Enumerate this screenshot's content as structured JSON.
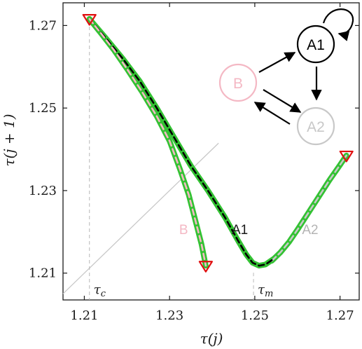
{
  "chart_data": {
    "type": "line",
    "xlabel": "τ(j)",
    "ylabel": "τ(j + 1)",
    "xlim": [
      1.205,
      1.2745
    ],
    "ylim": [
      1.2035,
      1.2755
    ],
    "xticks": [
      "1.21",
      "1.23",
      "1.25",
      "1.27"
    ],
    "yticks": [
      "1.21",
      "1.23",
      "1.25",
      "1.27"
    ],
    "grid": false,
    "identity_line": {
      "x": [
        1.205,
        1.2415
      ],
      "y": [
        1.205,
        1.2415
      ],
      "color": "#c8c8c8"
    },
    "series": [
      {
        "name": "B",
        "color": "#f4b8c4",
        "x": [
          1.2112,
          1.214,
          1.217,
          1.22,
          1.2235,
          1.227,
          1.23,
          1.2325,
          1.2345,
          1.236,
          1.2375,
          1.2385
        ],
        "y": [
          1.2716,
          1.268,
          1.264,
          1.2595,
          1.254,
          1.248,
          1.242,
          1.235,
          1.229,
          1.223,
          1.217,
          1.2118
        ]
      },
      {
        "name": "A1",
        "color": "#000000",
        "x": [
          1.2112,
          1.215,
          1.219,
          1.223,
          1.227,
          1.231,
          1.235,
          1.239,
          1.243,
          1.246,
          1.248,
          1.2495,
          1.251,
          1.2525,
          1.2545
        ],
        "y": [
          1.2716,
          1.267,
          1.262,
          1.2565,
          1.25,
          1.243,
          1.236,
          1.23,
          1.2235,
          1.218,
          1.2145,
          1.2125,
          1.2118,
          1.2121,
          1.2135
        ]
      },
      {
        "name": "A2",
        "color": "#c8c8c8",
        "x": [
          1.254,
          1.256,
          1.258,
          1.26,
          1.2625,
          1.265,
          1.2675,
          1.27,
          1.2715
        ],
        "y": [
          1.213,
          1.215,
          1.2175,
          1.2205,
          1.2245,
          1.2285,
          1.2325,
          1.2362,
          1.2385
        ]
      }
    ],
    "envelope_color": "#33c233",
    "markers": [
      {
        "x": 1.2112,
        "y": 1.2716
      },
      {
        "x": 1.2385,
        "y": 1.2118
      },
      {
        "x": 1.2715,
        "y": 1.2385
      }
    ],
    "marker_color": "#e01010",
    "vertical_refs": [
      {
        "x": 1.2112,
        "label": "τ",
        "sub": "c"
      },
      {
        "x": 1.2497,
        "label": "τ",
        "sub": "m"
      }
    ],
    "branch_labels": [
      {
        "text": "B",
        "x": 1.2333,
        "y": 1.2195,
        "color": "#f4b8c4"
      },
      {
        "text": "A1",
        "x": 1.2465,
        "y": 1.2195,
        "color": "#1a1a1a"
      },
      {
        "text": "A2",
        "x": 1.263,
        "y": 1.2195,
        "color": "#b4b4b4"
      }
    ]
  },
  "inset_diagram": {
    "nodes": [
      {
        "id": "A1",
        "label": "A1",
        "color": "#000000"
      },
      {
        "id": "B",
        "label": "B",
        "color": "#f4b8c4"
      },
      {
        "id": "A2",
        "label": "A2",
        "color": "#c8c8c8"
      }
    ],
    "edges": [
      {
        "from": "A1",
        "to": "A1"
      },
      {
        "from": "B",
        "to": "A1"
      },
      {
        "from": "A1",
        "to": "A2"
      },
      {
        "from": "B",
        "to": "A2"
      },
      {
        "from": "A2",
        "to": "B"
      }
    ]
  }
}
